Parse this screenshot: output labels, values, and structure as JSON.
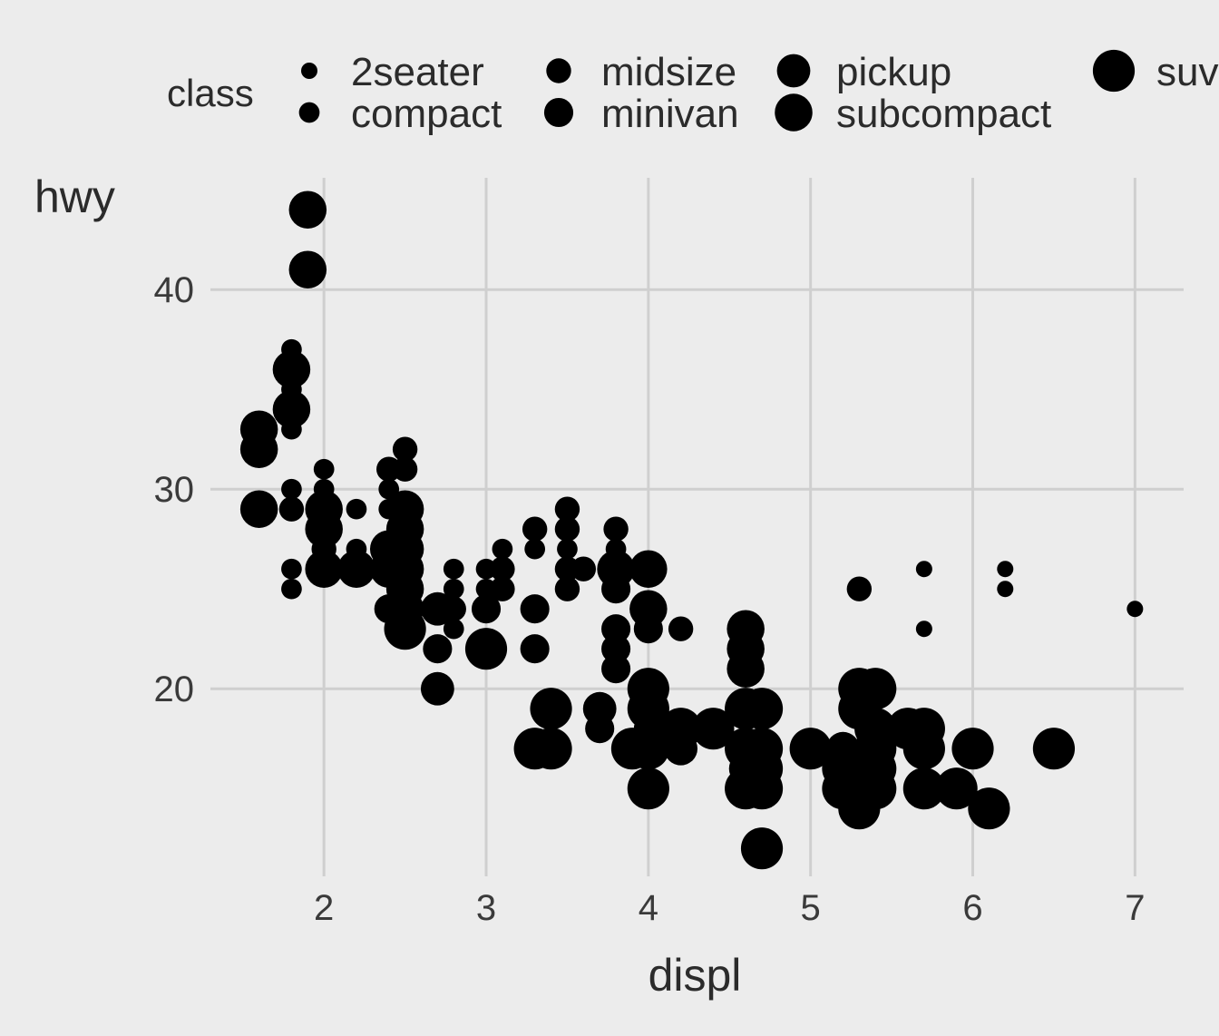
{
  "chart_data": {
    "type": "scatter",
    "title": "",
    "xlabel": "displ",
    "ylabel": "hwy",
    "xlim": [
      1.3,
      7.3
    ],
    "ylim": [
      10.6,
      45.6
    ],
    "x_ticks": [
      2,
      3,
      4,
      5,
      6,
      7
    ],
    "y_ticks": [
      20,
      30,
      40
    ],
    "grid": true,
    "background": "#ececec",
    "grid_color": "#cfcfcf",
    "point_color": "#000000",
    "legend": {
      "title": "class",
      "placement": "top",
      "aesthetic": "size",
      "entries": [
        {
          "label": "2seater",
          "size_level": 1
        },
        {
          "label": "compact",
          "size_level": 2
        },
        {
          "label": "midsize",
          "size_level": 3
        },
        {
          "label": "minivan",
          "size_level": 4
        },
        {
          "label": "pickup",
          "size_level": 5
        },
        {
          "label": "subcompact",
          "size_level": 6
        },
        {
          "label": "suv",
          "size_level": 7
        }
      ]
    },
    "points": [
      {
        "x": 1.9,
        "y": 44,
        "class": "subcompact"
      },
      {
        "x": 1.9,
        "y": 41,
        "class": "subcompact"
      },
      {
        "x": 1.8,
        "y": 37,
        "class": "compact"
      },
      {
        "x": 1.8,
        "y": 36,
        "class": "subcompact"
      },
      {
        "x": 1.8,
        "y": 35,
        "class": "compact"
      },
      {
        "x": 1.8,
        "y": 34,
        "class": "subcompact"
      },
      {
        "x": 1.8,
        "y": 33,
        "class": "compact"
      },
      {
        "x": 1.6,
        "y": 33,
        "class": "subcompact"
      },
      {
        "x": 1.6,
        "y": 32,
        "class": "subcompact"
      },
      {
        "x": 1.6,
        "y": 29,
        "class": "subcompact"
      },
      {
        "x": 1.8,
        "y": 30,
        "class": "compact"
      },
      {
        "x": 1.8,
        "y": 29,
        "class": "midsize"
      },
      {
        "x": 1.8,
        "y": 26,
        "class": "compact"
      },
      {
        "x": 1.8,
        "y": 25,
        "class": "compact"
      },
      {
        "x": 2.0,
        "y": 31,
        "class": "compact"
      },
      {
        "x": 2.0,
        "y": 30,
        "class": "compact"
      },
      {
        "x": 2.0,
        "y": 29,
        "class": "subcompact"
      },
      {
        "x": 2.0,
        "y": 28,
        "class": "subcompact"
      },
      {
        "x": 2.0,
        "y": 27,
        "class": "midsize"
      },
      {
        "x": 2.0,
        "y": 26,
        "class": "subcompact"
      },
      {
        "x": 2.2,
        "y": 29,
        "class": "compact"
      },
      {
        "x": 2.2,
        "y": 27,
        "class": "compact"
      },
      {
        "x": 2.2,
        "y": 26,
        "class": "subcompact"
      },
      {
        "x": 2.4,
        "y": 31,
        "class": "midsize"
      },
      {
        "x": 2.4,
        "y": 30,
        "class": "compact"
      },
      {
        "x": 2.4,
        "y": 29,
        "class": "compact"
      },
      {
        "x": 2.4,
        "y": 27,
        "class": "subcompact"
      },
      {
        "x": 2.4,
        "y": 26,
        "class": "subcompact"
      },
      {
        "x": 2.4,
        "y": 24,
        "class": "minivan"
      },
      {
        "x": 2.5,
        "y": 32,
        "class": "midsize"
      },
      {
        "x": 2.5,
        "y": 31,
        "class": "midsize"
      },
      {
        "x": 2.5,
        "y": 29,
        "class": "subcompact"
      },
      {
        "x": 2.5,
        "y": 28,
        "class": "subcompact"
      },
      {
        "x": 2.5,
        "y": 27,
        "class": "subcompact"
      },
      {
        "x": 2.5,
        "y": 26,
        "class": "subcompact"
      },
      {
        "x": 2.5,
        "y": 25,
        "class": "subcompact"
      },
      {
        "x": 2.5,
        "y": 24,
        "class": "subcompact"
      },
      {
        "x": 2.5,
        "y": 23,
        "class": "suv"
      },
      {
        "x": 2.7,
        "y": 24,
        "class": "pickup"
      },
      {
        "x": 2.7,
        "y": 22,
        "class": "minivan"
      },
      {
        "x": 2.7,
        "y": 20,
        "class": "pickup"
      },
      {
        "x": 2.8,
        "y": 26,
        "class": "compact"
      },
      {
        "x": 2.8,
        "y": 25,
        "class": "compact"
      },
      {
        "x": 2.8,
        "y": 24,
        "class": "midsize"
      },
      {
        "x": 2.8,
        "y": 23,
        "class": "compact"
      },
      {
        "x": 3.0,
        "y": 26,
        "class": "compact"
      },
      {
        "x": 3.0,
        "y": 25,
        "class": "compact"
      },
      {
        "x": 3.0,
        "y": 24,
        "class": "minivan"
      },
      {
        "x": 3.0,
        "y": 22,
        "class": "suv"
      },
      {
        "x": 3.1,
        "y": 27,
        "class": "compact"
      },
      {
        "x": 3.1,
        "y": 26,
        "class": "midsize"
      },
      {
        "x": 3.1,
        "y": 25,
        "class": "midsize"
      },
      {
        "x": 3.3,
        "y": 28,
        "class": "midsize"
      },
      {
        "x": 3.3,
        "y": 27,
        "class": "compact"
      },
      {
        "x": 3.3,
        "y": 24,
        "class": "minivan"
      },
      {
        "x": 3.3,
        "y": 22,
        "class": "minivan"
      },
      {
        "x": 3.3,
        "y": 17,
        "class": "suv"
      },
      {
        "x": 3.4,
        "y": 19,
        "class": "suv"
      },
      {
        "x": 3.4,
        "y": 17,
        "class": "suv"
      },
      {
        "x": 3.5,
        "y": 29,
        "class": "midsize"
      },
      {
        "x": 3.5,
        "y": 28,
        "class": "midsize"
      },
      {
        "x": 3.5,
        "y": 27,
        "class": "compact"
      },
      {
        "x": 3.5,
        "y": 26,
        "class": "midsize"
      },
      {
        "x": 3.5,
        "y": 25,
        "class": "midsize"
      },
      {
        "x": 3.6,
        "y": 26,
        "class": "midsize"
      },
      {
        "x": 3.7,
        "y": 19,
        "class": "pickup"
      },
      {
        "x": 3.7,
        "y": 18,
        "class": "minivan"
      },
      {
        "x": 3.8,
        "y": 28,
        "class": "midsize"
      },
      {
        "x": 3.8,
        "y": 27,
        "class": "compact"
      },
      {
        "x": 3.8,
        "y": 26,
        "class": "subcompact"
      },
      {
        "x": 3.8,
        "y": 25,
        "class": "minivan"
      },
      {
        "x": 3.8,
        "y": 23,
        "class": "minivan"
      },
      {
        "x": 3.8,
        "y": 22,
        "class": "minivan"
      },
      {
        "x": 3.8,
        "y": 21,
        "class": "minivan"
      },
      {
        "x": 3.9,
        "y": 17,
        "class": "suv"
      },
      {
        "x": 4.0,
        "y": 26,
        "class": "subcompact"
      },
      {
        "x": 4.0,
        "y": 24,
        "class": "subcompact"
      },
      {
        "x": 4.0,
        "y": 23,
        "class": "minivan"
      },
      {
        "x": 4.0,
        "y": 20,
        "class": "suv"
      },
      {
        "x": 4.0,
        "y": 19,
        "class": "suv"
      },
      {
        "x": 4.0,
        "y": 18,
        "class": "minivan"
      },
      {
        "x": 4.0,
        "y": 17,
        "class": "suv"
      },
      {
        "x": 4.0,
        "y": 15,
        "class": "suv"
      },
      {
        "x": 4.2,
        "y": 23,
        "class": "midsize"
      },
      {
        "x": 4.2,
        "y": 18,
        "class": "suv"
      },
      {
        "x": 4.2,
        "y": 17,
        "class": "pickup"
      },
      {
        "x": 4.4,
        "y": 18,
        "class": "suv"
      },
      {
        "x": 4.6,
        "y": 23,
        "class": "subcompact"
      },
      {
        "x": 4.6,
        "y": 22,
        "class": "subcompact"
      },
      {
        "x": 4.6,
        "y": 21,
        "class": "subcompact"
      },
      {
        "x": 4.6,
        "y": 19,
        "class": "suv"
      },
      {
        "x": 4.6,
        "y": 17,
        "class": "suv"
      },
      {
        "x": 4.6,
        "y": 16,
        "class": "pickup"
      },
      {
        "x": 4.6,
        "y": 15,
        "class": "suv"
      },
      {
        "x": 4.7,
        "y": 19,
        "class": "suv"
      },
      {
        "x": 4.7,
        "y": 17,
        "class": "suv"
      },
      {
        "x": 4.7,
        "y": 16,
        "class": "suv"
      },
      {
        "x": 4.7,
        "y": 15,
        "class": "suv"
      },
      {
        "x": 4.7,
        "y": 12,
        "class": "suv"
      },
      {
        "x": 5.0,
        "y": 17,
        "class": "suv"
      },
      {
        "x": 5.2,
        "y": 17,
        "class": "pickup"
      },
      {
        "x": 5.2,
        "y": 16,
        "class": "suv"
      },
      {
        "x": 5.2,
        "y": 15,
        "class": "suv"
      },
      {
        "x": 5.3,
        "y": 25,
        "class": "midsize"
      },
      {
        "x": 5.3,
        "y": 20,
        "class": "suv"
      },
      {
        "x": 5.3,
        "y": 19,
        "class": "suv"
      },
      {
        "x": 5.3,
        "y": 16,
        "class": "suv"
      },
      {
        "x": 5.3,
        "y": 15,
        "class": "suv"
      },
      {
        "x": 5.3,
        "y": 14,
        "class": "suv"
      },
      {
        "x": 5.4,
        "y": 20,
        "class": "suv"
      },
      {
        "x": 5.4,
        "y": 18,
        "class": "suv"
      },
      {
        "x": 5.4,
        "y": 17,
        "class": "suv"
      },
      {
        "x": 5.4,
        "y": 16,
        "class": "suv"
      },
      {
        "x": 5.4,
        "y": 15,
        "class": "suv"
      },
      {
        "x": 5.6,
        "y": 18,
        "class": "suv"
      },
      {
        "x": 5.7,
        "y": 26,
        "class": "2seater"
      },
      {
        "x": 5.7,
        "y": 23,
        "class": "2seater"
      },
      {
        "x": 5.7,
        "y": 18,
        "class": "suv"
      },
      {
        "x": 5.7,
        "y": 17,
        "class": "suv"
      },
      {
        "x": 5.7,
        "y": 15,
        "class": "suv"
      },
      {
        "x": 5.9,
        "y": 15,
        "class": "suv"
      },
      {
        "x": 6.0,
        "y": 17,
        "class": "suv"
      },
      {
        "x": 6.1,
        "y": 14,
        "class": "suv"
      },
      {
        "x": 6.2,
        "y": 26,
        "class": "2seater"
      },
      {
        "x": 6.2,
        "y": 25,
        "class": "2seater"
      },
      {
        "x": 6.5,
        "y": 17,
        "class": "suv"
      },
      {
        "x": 7.0,
        "y": 24,
        "class": "2seater"
      }
    ]
  }
}
